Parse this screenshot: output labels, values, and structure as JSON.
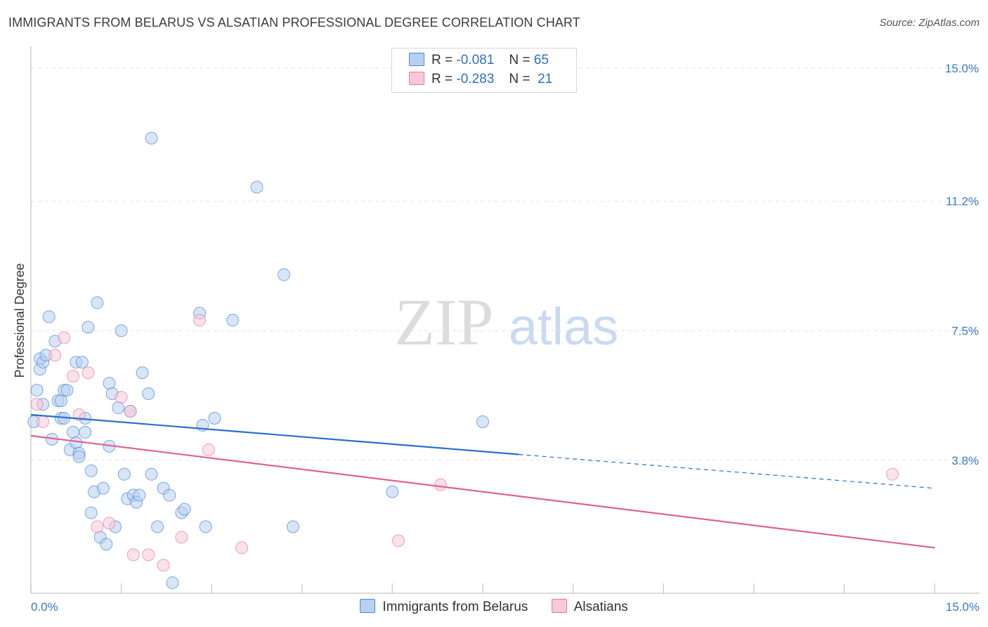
{
  "title": "IMMIGRANTS FROM BELARUS VS ALSATIAN PROFESSIONAL DEGREE CORRELATION CHART",
  "source": "Source: ZipAtlas.com",
  "watermark": {
    "zip": "ZIP",
    "atlas": "atlas"
  },
  "legend": {
    "r_label": "R =",
    "n_label": "N =",
    "rows": [
      {
        "series": "Immigrants from Belarus",
        "r": "-0.081",
        "n": "65",
        "color": "#4a86d8",
        "fill": "#b8d0f0"
      },
      {
        "series": "Alsatians",
        "r": "-0.283",
        "n": "21",
        "color": "#e87aa0",
        "fill": "#f8c8d8"
      }
    ]
  },
  "chart_data": {
    "type": "scatter",
    "title": "IMMIGRANTS FROM BELARUS VS ALSATIAN PROFESSIONAL DEGREE CORRELATION CHART",
    "xlabel": "",
    "ylabel": "Professional Degree",
    "xlim": [
      0,
      15
    ],
    "ylim": [
      0,
      15
    ],
    "x_tick_labels": [
      "0.0%",
      "15.0%"
    ],
    "y_ticks": [
      3.8,
      7.5,
      11.2,
      15.0
    ],
    "y_tick_labels": [
      "3.8%",
      "7.5%",
      "11.2%",
      "15.0%"
    ],
    "grid": true,
    "series": [
      {
        "name": "Immigrants from Belarus",
        "color": "#4a86d8",
        "fill": "#b8d0f0",
        "points": [
          [
            0.05,
            4.9
          ],
          [
            0.1,
            5.8
          ],
          [
            0.15,
            6.4
          ],
          [
            0.15,
            6.7
          ],
          [
            0.2,
            5.4
          ],
          [
            0.2,
            6.6
          ],
          [
            0.25,
            6.8
          ],
          [
            0.3,
            7.9
          ],
          [
            0.35,
            4.4
          ],
          [
            0.4,
            7.2
          ],
          [
            0.45,
            5.5
          ],
          [
            0.5,
            5.0
          ],
          [
            0.5,
            5.5
          ],
          [
            0.55,
            5.0
          ],
          [
            0.55,
            5.8
          ],
          [
            0.6,
            5.8
          ],
          [
            0.65,
            4.1
          ],
          [
            0.7,
            4.6
          ],
          [
            0.75,
            6.6
          ],
          [
            0.75,
            4.3
          ],
          [
            0.8,
            4.0
          ],
          [
            0.8,
            3.9
          ],
          [
            0.85,
            6.6
          ],
          [
            0.9,
            5.0
          ],
          [
            0.9,
            4.6
          ],
          [
            0.95,
            7.6
          ],
          [
            1.0,
            3.5
          ],
          [
            1.0,
            2.3
          ],
          [
            1.05,
            2.9
          ],
          [
            1.1,
            8.3
          ],
          [
            1.15,
            1.6
          ],
          [
            1.2,
            3.0
          ],
          [
            1.25,
            1.4
          ],
          [
            1.3,
            4.2
          ],
          [
            1.3,
            6.0
          ],
          [
            1.35,
            5.7
          ],
          [
            1.4,
            1.9
          ],
          [
            1.45,
            5.3
          ],
          [
            1.5,
            7.5
          ],
          [
            1.55,
            3.4
          ],
          [
            1.6,
            2.7
          ],
          [
            1.65,
            5.2
          ],
          [
            1.7,
            2.8
          ],
          [
            1.75,
            2.6
          ],
          [
            1.8,
            2.8
          ],
          [
            1.85,
            6.3
          ],
          [
            1.95,
            5.7
          ],
          [
            2.0,
            13.0
          ],
          [
            2.0,
            3.4
          ],
          [
            2.1,
            1.9
          ],
          [
            2.2,
            3.0
          ],
          [
            2.3,
            2.8
          ],
          [
            2.35,
            0.3
          ],
          [
            2.5,
            2.3
          ],
          [
            2.55,
            2.4
          ],
          [
            2.8,
            8.0
          ],
          [
            2.85,
            4.8
          ],
          [
            2.9,
            1.9
          ],
          [
            3.05,
            5.0
          ],
          [
            3.35,
            7.8
          ],
          [
            3.75,
            11.6
          ],
          [
            4.2,
            9.1
          ],
          [
            4.35,
            1.9
          ],
          [
            6.0,
            2.9
          ],
          [
            7.5,
            4.9
          ]
        ]
      },
      {
        "name": "Alsatians",
        "color": "#e87aa0",
        "fill": "#f8c8d8",
        "points": [
          [
            0.1,
            5.4
          ],
          [
            0.2,
            4.9
          ],
          [
            0.4,
            6.8
          ],
          [
            0.55,
            7.3
          ],
          [
            0.7,
            6.2
          ],
          [
            0.8,
            5.1
          ],
          [
            0.95,
            6.3
          ],
          [
            1.1,
            1.9
          ],
          [
            1.3,
            2.0
          ],
          [
            1.5,
            5.6
          ],
          [
            1.65,
            5.2
          ],
          [
            1.7,
            1.1
          ],
          [
            1.95,
            1.1
          ],
          [
            2.2,
            0.8
          ],
          [
            2.5,
            1.6
          ],
          [
            2.8,
            7.8
          ],
          [
            2.95,
            4.1
          ],
          [
            3.5,
            1.3
          ],
          [
            6.1,
            1.5
          ],
          [
            6.8,
            3.1
          ],
          [
            14.3,
            3.4
          ]
        ]
      }
    ],
    "trend_lines": [
      {
        "series": "Immigrants from Belarus",
        "x": [
          0,
          15
        ],
        "y": [
          5.1,
          3.0
        ],
        "solid_until_x": 8.1
      },
      {
        "series": "Alsatians",
        "x": [
          0,
          15
        ],
        "y": [
          4.5,
          1.3
        ],
        "solid_until_x": 15
      }
    ]
  }
}
